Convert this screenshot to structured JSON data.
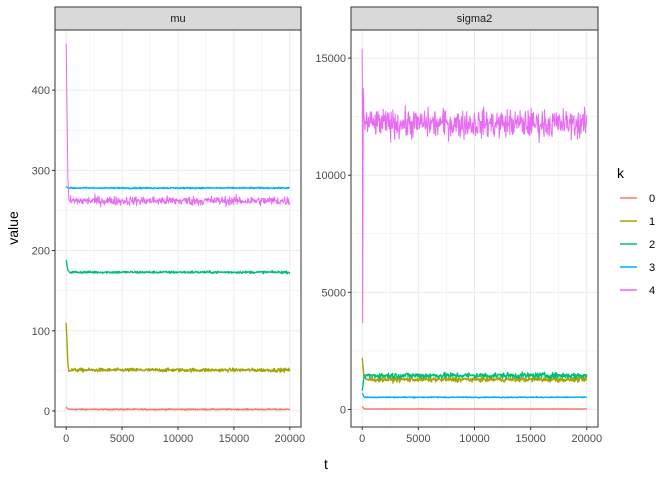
{
  "chart_data": {
    "type": "line",
    "xlabel": "t",
    "ylabel": "value",
    "legend": {
      "title": "k",
      "placement": "right",
      "entries": [
        "0",
        "1",
        "2",
        "3",
        "4"
      ]
    },
    "colors": {
      "0": "#F8766D",
      "1": "#A3A500",
      "2": "#00BF7D",
      "3": "#00B0F6",
      "4": "#E76BF3"
    },
    "grid": true,
    "facets": [
      {
        "strip": "mu",
        "xlim": [
          -1000,
          21000
        ],
        "ylim": [
          -20,
          475
        ],
        "x_ticks": [
          0,
          5000,
          10000,
          15000,
          20000
        ],
        "x_tick_labels": [
          "0",
          "5000",
          "10000",
          "15000",
          "20000"
        ],
        "y_ticks": [
          0,
          100,
          200,
          300,
          400
        ],
        "y_tick_labels": [
          "0",
          "100",
          "200",
          "300",
          "400"
        ],
        "series": [
          {
            "k": "0",
            "initial": 5,
            "level": 2,
            "noise": 0.5
          },
          {
            "k": "1",
            "initial": 110,
            "level": 51,
            "noise": 1.5
          },
          {
            "k": "2",
            "initial": 188,
            "level": 173,
            "noise": 1
          },
          {
            "k": "3",
            "initial": 280,
            "level": 278,
            "noise": 0.6
          },
          {
            "k": "4",
            "initial": 458,
            "level": 262,
            "noise": 4
          }
        ]
      },
      {
        "strip": "sigma2",
        "xlim": [
          -1000,
          21000
        ],
        "ylim": [
          -750,
          16200
        ],
        "x_ticks": [
          0,
          5000,
          10000,
          15000,
          20000
        ],
        "x_tick_labels": [
          "0",
          "5000",
          "10000",
          "15000",
          "20000"
        ],
        "y_ticks": [
          0,
          5000,
          10000,
          15000
        ],
        "y_tick_labels": [
          "0",
          "5000",
          "10000",
          "15000"
        ],
        "series": [
          {
            "k": "0",
            "initial": 120,
            "level": 20,
            "noise": 6
          },
          {
            "k": "1",
            "initial": 2200,
            "level": 1280,
            "noise": 70
          },
          {
            "k": "2",
            "initial": 800,
            "level": 1450,
            "noise": 80
          },
          {
            "k": "3",
            "initial": 700,
            "level": 520,
            "noise": 15
          },
          {
            "k": "4",
            "initial": 15400,
            "level": 12200,
            "noise": 420,
            "dip": 3700
          }
        ]
      }
    ]
  }
}
